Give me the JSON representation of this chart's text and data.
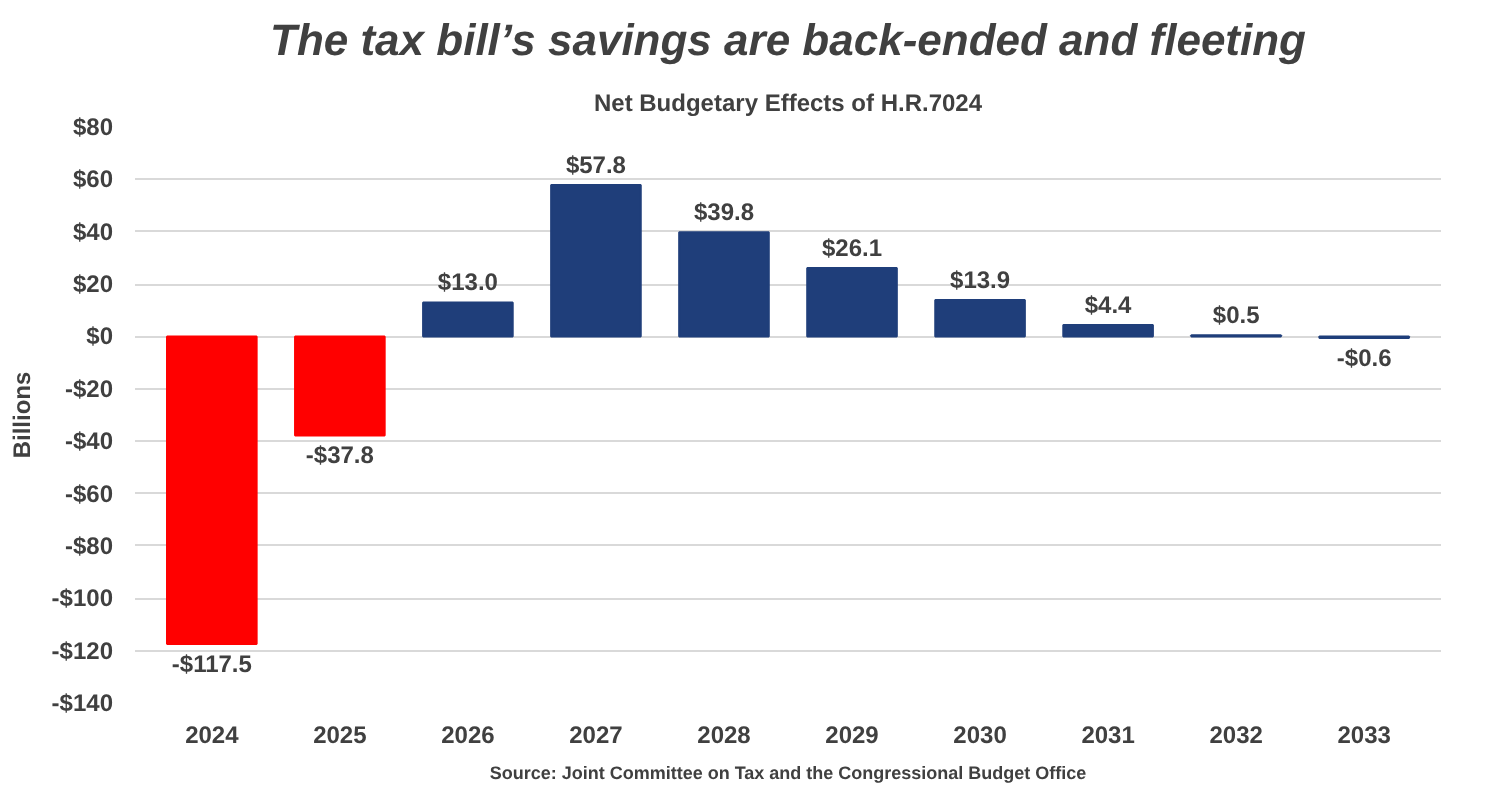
{
  "chart_data": {
    "type": "bar",
    "title": "The tax bill’s savings are back-ended and fleeting",
    "subtitle": "Net Budgetary Effects of H.R.7024",
    "ylabel": "Billions",
    "categories": [
      "2024",
      "2025",
      "2026",
      "2027",
      "2028",
      "2029",
      "2030",
      "2031",
      "2032",
      "2033"
    ],
    "values": [
      -117.5,
      -37.8,
      13.0,
      57.8,
      39.8,
      26.1,
      13.9,
      4.4,
      0.5,
      -0.6
    ],
    "colors": [
      "#ff0000",
      "#ff0000",
      "#1f3e7a",
      "#1f3e7a",
      "#1f3e7a",
      "#1f3e7a",
      "#1f3e7a",
      "#1f3e7a",
      "#1f3e7a",
      "#1f3e7a"
    ],
    "value_labels": [
      "-$117.5",
      "-$37.8",
      "$13.0",
      "$57.8",
      "$39.8",
      "$26.1",
      "$13.9",
      "$4.4",
      "$0.5",
      "-$0.6"
    ],
    "ylim": [
      -140,
      80
    ],
    "yticks": [
      {
        "value": -140,
        "label": "-$140"
      },
      {
        "value": -120,
        "label": "-$120"
      },
      {
        "value": -100,
        "label": "-$100"
      },
      {
        "value": -80,
        "label": "-$80"
      },
      {
        "value": -60,
        "label": "-$60"
      },
      {
        "value": -40,
        "label": "-$40"
      },
      {
        "value": -20,
        "label": "-$20"
      },
      {
        "value": 0,
        "label": "$0"
      },
      {
        "value": 20,
        "label": "$20"
      },
      {
        "value": 40,
        "label": "$40"
      },
      {
        "value": 60,
        "label": "$60"
      },
      {
        "value": 80,
        "label": "$80"
      }
    ],
    "grid": "y",
    "annotations": [
      "Source: Joint Committee on Tax and the Congressional Budget Office"
    ]
  }
}
